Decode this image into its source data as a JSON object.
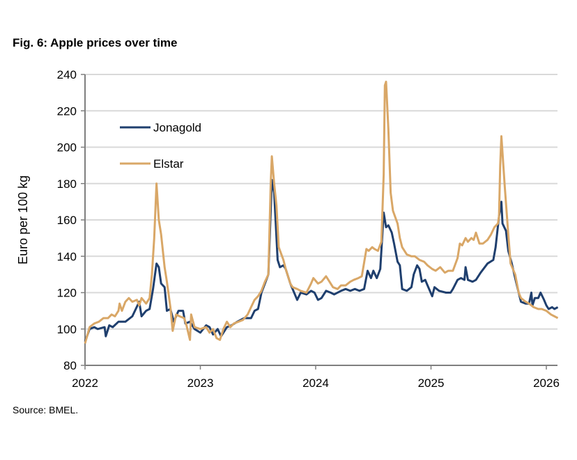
{
  "title": "Fig. 6: Apple prices over time",
  "source": "Source: BMEL.",
  "chart_data": {
    "type": "line",
    "title": "Fig. 6: Apple prices over time",
    "xlabel": "",
    "ylabel": "Euro per 100 kg",
    "xlim": [
      2022,
      2026.1
    ],
    "ylim": [
      80,
      240
    ],
    "xticks": [
      2022,
      2023,
      2024,
      2025,
      2026
    ],
    "yticks": [
      80,
      100,
      120,
      140,
      160,
      180,
      200,
      220,
      240
    ],
    "grid": "horizontal",
    "legend": "top-left",
    "series": [
      {
        "name": "Jonagold",
        "color": "#1f3f6e",
        "x": [
          2022.0,
          2022.04,
          2022.08,
          2022.11,
          2022.17,
          2022.18,
          2022.21,
          2022.24,
          2022.29,
          2022.35,
          2022.41,
          2022.47,
          2022.49,
          2022.53,
          2022.56,
          2022.59,
          2022.62,
          2022.64,
          2022.66,
          2022.69,
          2022.71,
          2022.74,
          2022.77,
          2022.81,
          2022.85,
          2022.87,
          2022.91,
          2022.95,
          2023.0,
          2023.05,
          2023.08,
          2023.11,
          2023.15,
          2023.18,
          2023.23,
          2023.27,
          2023.32,
          2023.38,
          2023.44,
          2023.47,
          2023.5,
          2023.53,
          2023.56,
          2023.59,
          2023.61,
          2023.62,
          2023.64,
          2023.67,
          2023.69,
          2023.72,
          2023.74,
          2023.78,
          2023.8,
          2023.84,
          2023.87,
          2023.92,
          2023.96,
          2023.99,
          2024.02,
          2024.05,
          2024.09,
          2024.13,
          2024.16,
          2024.22,
          2024.26,
          2024.3,
          2024.34,
          2024.38,
          2024.42,
          2024.45,
          2024.48,
          2024.5,
          2024.53,
          2024.56,
          2024.59,
          2024.61,
          2024.63,
          2024.66,
          2024.68,
          2024.71,
          2024.73,
          2024.75,
          2024.79,
          2024.83,
          2024.85,
          2024.88,
          2024.9,
          2024.92,
          2024.95,
          2024.97,
          2025.01,
          2025.03,
          2025.07,
          2025.13,
          2025.17,
          2025.19,
          2025.23,
          2025.26,
          2025.29,
          2025.3,
          2025.32,
          2025.36,
          2025.39,
          2025.43,
          2025.49,
          2025.54,
          2025.56,
          2025.59,
          2025.61,
          2025.62,
          2025.65,
          2025.67,
          2025.7,
          2025.73,
          2025.76,
          2025.78,
          2025.82,
          2025.85,
          2025.87,
          2025.88,
          2025.9,
          2025.93,
          2025.95,
          2025.98,
          2026.0,
          2026.02,
          2026.05,
          2026.07,
          2026.1
        ],
        "y": [
          93,
          100,
          101,
          100,
          101,
          96,
          102,
          101,
          104,
          104,
          107,
          115,
          107,
          110,
          111,
          122,
          136,
          134,
          125,
          123,
          110,
          111,
          104,
          110,
          110,
          103,
          104,
          100,
          98,
          102,
          101,
          97,
          100,
          96,
          101,
          102,
          104,
          106,
          106,
          110,
          111,
          120,
          125,
          130,
          165,
          182,
          175,
          138,
          134,
          135,
          133,
          125,
          122,
          116,
          120,
          119,
          121,
          120,
          116,
          117,
          121,
          120,
          119,
          121,
          122,
          121,
          122,
          121,
          122,
          132,
          128,
          132,
          128,
          133,
          164,
          156,
          157,
          153,
          147,
          137,
          135,
          122,
          121,
          123,
          130,
          135,
          133,
          126,
          127,
          124,
          118,
          123,
          121,
          120,
          120,
          122,
          127,
          128,
          127,
          134,
          127,
          126,
          127,
          131,
          136,
          138,
          145,
          162,
          170,
          158,
          154,
          143,
          136,
          128,
          120,
          115,
          114,
          114,
          120,
          113,
          117,
          117,
          120,
          116,
          113,
          111,
          112,
          111,
          112
        ]
      },
      {
        "name": "Elstar",
        "color": "#d9a767",
        "x": [
          2022.0,
          2022.04,
          2022.08,
          2022.12,
          2022.16,
          2022.2,
          2022.23,
          2022.26,
          2022.29,
          2022.3,
          2022.32,
          2022.35,
          2022.38,
          2022.41,
          2022.45,
          2022.47,
          2022.49,
          2022.53,
          2022.56,
          2022.58,
          2022.6,
          2022.62,
          2022.64,
          2022.66,
          2022.69,
          2022.71,
          2022.74,
          2022.76,
          2022.79,
          2022.82,
          2022.86,
          2022.88,
          2022.91,
          2022.92,
          2022.95,
          2023.0,
          2023.05,
          2023.08,
          2023.11,
          2023.14,
          2023.17,
          2023.2,
          2023.23,
          2023.26,
          2023.29,
          2023.33,
          2023.37,
          2023.41,
          2023.44,
          2023.47,
          2023.5,
          2023.53,
          2023.56,
          2023.59,
          2023.61,
          2023.62,
          2023.64,
          2023.66,
          2023.68,
          2023.72,
          2023.74,
          2023.78,
          2023.8,
          2023.84,
          2023.87,
          2023.92,
          2023.96,
          2023.98,
          2024.02,
          2024.05,
          2024.09,
          2024.11,
          2024.15,
          2024.19,
          2024.22,
          2024.26,
          2024.3,
          2024.33,
          2024.37,
          2024.4,
          2024.44,
          2024.46,
          2024.49,
          2024.51,
          2024.54,
          2024.57,
          2024.59,
          2024.6,
          2024.61,
          2024.63,
          2024.65,
          2024.67,
          2024.71,
          2024.73,
          2024.75,
          2024.79,
          2024.83,
          2024.86,
          2024.9,
          2024.94,
          2024.97,
          2025.01,
          2025.04,
          2025.08,
          2025.12,
          2025.15,
          2025.19,
          2025.23,
          2025.25,
          2025.27,
          2025.3,
          2025.32,
          2025.35,
          2025.37,
          2025.39,
          2025.42,
          2025.45,
          2025.49,
          2025.52,
          2025.55,
          2025.58,
          2025.59,
          2025.6,
          2025.61,
          2025.64,
          2025.67,
          2025.69,
          2025.73,
          2025.76,
          2025.78,
          2025.82,
          2025.85,
          2025.89,
          2025.93,
          2025.96,
          2026.0,
          2026.04,
          2026.07,
          2026.1
        ],
        "y": [
          92,
          101,
          103,
          104,
          106,
          106,
          108,
          107,
          110,
          114,
          110,
          115,
          117,
          115,
          116,
          113,
          117,
          114,
          117,
          130,
          150,
          180,
          160,
          152,
          134,
          126,
          112,
          99,
          108,
          107,
          106,
          102,
          94,
          108,
          101,
          100,
          101,
          98,
          100,
          95,
          94,
          100,
          104,
          101,
          103,
          104,
          105,
          108,
          112,
          116,
          118,
          121,
          126,
          130,
          180,
          195,
          180,
          168,
          145,
          138,
          133,
          125,
          123,
          122,
          121,
          120,
          125,
          128,
          125,
          126,
          129,
          127,
          123,
          122,
          124,
          124,
          126,
          127,
          128,
          129,
          144,
          143,
          145,
          144,
          143,
          148,
          185,
          234,
          236,
          210,
          175,
          165,
          158,
          150,
          145,
          141,
          140,
          140,
          138,
          137,
          135,
          133,
          132,
          134,
          131,
          132,
          132,
          139,
          147,
          146,
          150,
          148,
          150,
          149,
          153,
          147,
          147,
          149,
          152,
          156,
          158,
          162,
          190,
          206,
          178,
          152,
          136,
          130,
          120,
          117,
          115,
          114,
          112,
          111,
          111,
          110,
          108,
          107,
          106
        ]
      }
    ]
  }
}
